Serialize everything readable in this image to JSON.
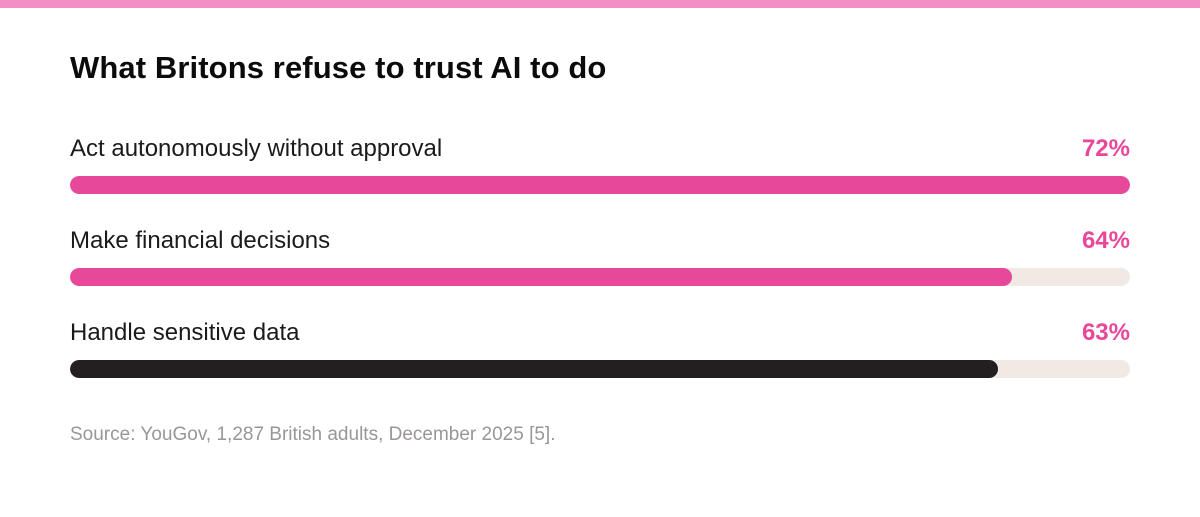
{
  "colors": {
    "accent_pink": "#e8489a",
    "dark_bar": "#231f20",
    "track": "#f1e9e3",
    "top_stripe": "#f48fc6"
  },
  "chart_data": {
    "type": "bar",
    "orientation": "horizontal",
    "title": "What Britons refuse to trust AI to do",
    "unit": "%",
    "categories": [
      "Act autonomously without approval",
      "Make financial decisions",
      "Handle sensitive data"
    ],
    "values": [
      72,
      64,
      63
    ],
    "value_labels": [
      "72%",
      "64%",
      "63%"
    ],
    "bar_colors": [
      "#e8489a",
      "#e8489a",
      "#231f20"
    ],
    "scale_max": 72,
    "source": "Source: YouGov, 1,287 British adults, December 2025 [5]."
  }
}
